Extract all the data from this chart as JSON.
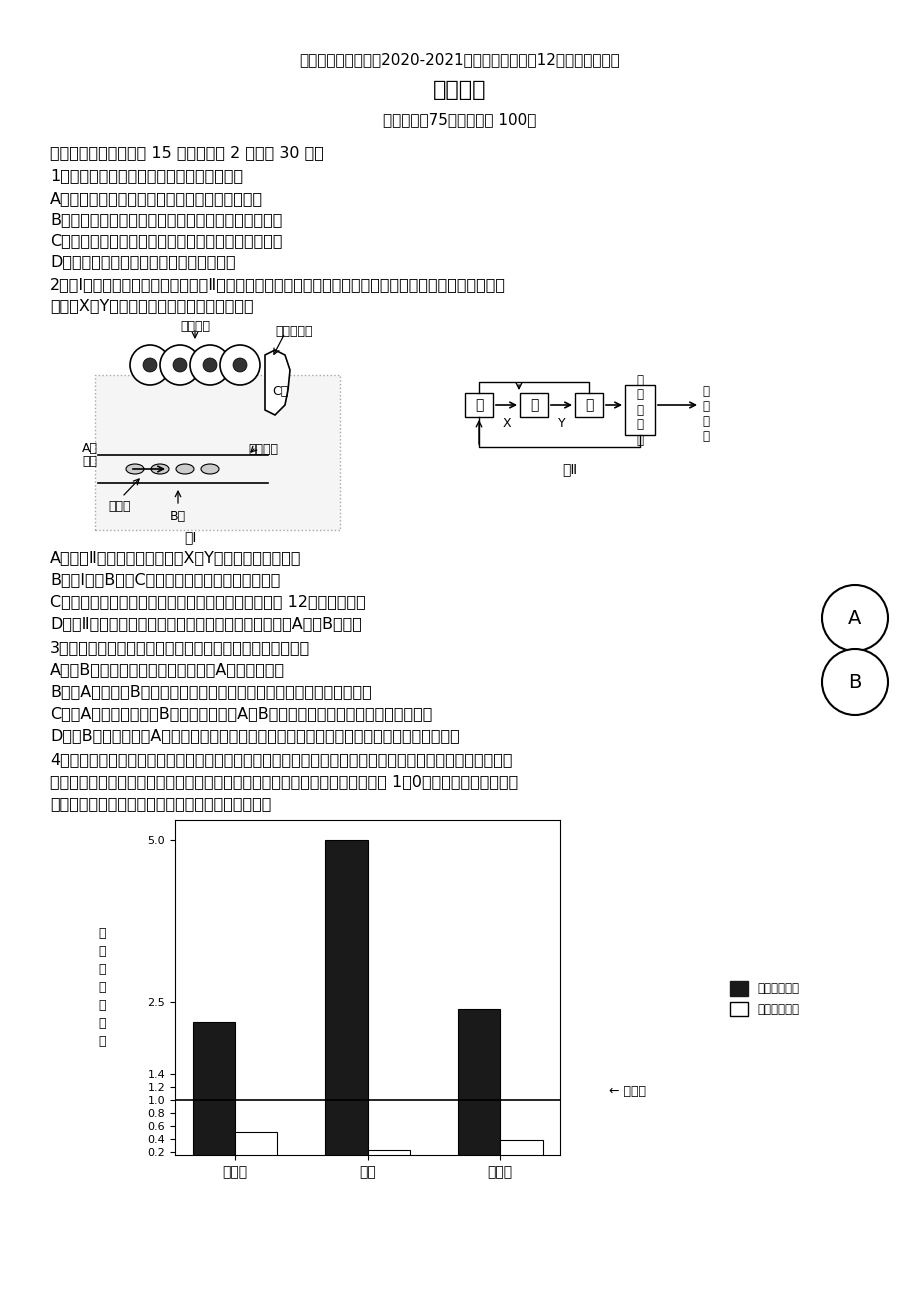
{
  "title_line1": "江苏省南菁高级中学2020-2021学年第一学期高二12月份阶段性考试",
  "title_line2": "生物试卷",
  "title_line3": "考试时间：75分钟，满分 100分",
  "section1": "一、单选题（本大题共 15 小题，每题 2 分，共 30 分）",
  "q1": "1．下列与人体内环境相关的叙述，正确的是",
  "q1a": "A．尿素、胆固醇、血浆蛋白均属于内环境的成分",
  "q1b": "B．内环境稳态是指内环境的理化性质处于动态平衡中",
  "q1c": "C．运动时，丙酮酸转化成乳酸的过程发生在组织液中",
  "q1d": "D．内环境是机体进行细胞代谢的主要场所",
  "q2_intro": "2．图Ⅰ是某组织局部结构模式图；图Ⅱ是人体甲状腺激素分泌的调节示意图，甲、乙、丙分别代表不同结构",
  "q2_intro2": "名称，X、Y代表激素名称。下列叙述错误的是",
  "q2a": "A．据图Ⅱ分析，人体缺碘时，X、Y的含量均低于正常值",
  "q2b": "B．图Ⅰ中，B液和C液中均存在淋巴细胞和吞噬细胞",
  "q2c": "C．红细胞中的氧气进入组织细胞被利用，需至少穿过 12层磷脂分子层",
  "q2d": "D．图Ⅱ中既存在分级调节也存在反馈调节，调节过程需A液、B液参与",
  "q3": "3．如图表示两个细胞相互接触的过程，下列叙述不正确的是",
  "q3a": "A．若B内部已经侵入了麻风杆菌，则A可能是浆细胞",
  "q3b": "B．若A是精子，B是卵细胞，则它们的结合与细胞膜上的糖蛋白识别有关",
  "q3c": "C．若A是死亡的细胞，B是吞噬细胞，则A被B吞噬后被分解的过程主要与溶酶体有关",
  "q3d": "D．若B是吞噬细胞，A是侵入人体的病原体细胞，则吞噬病原体的过程依赖于细胞膜的流动性",
  "q4_intro1": "4．胰岛素敏感性是描述胰岛素抵抗程度的一个指标。胰岛素敏感性越低，单位胰岛素的效果越差，分解糖类",
  "q4_intro2": "的程度就越低。如果将健康的成年人的胰岛素敏感性和胰岛素释放量的值均定为 1．0，那么健康的青少年、",
  "q4_intro3": "孕妇和肥胖者相应的值如图所示。下列分析正确的是",
  "bar_categories": [
    "青少年",
    "孕妇",
    "肥胖者"
  ],
  "bar_release": [
    2.2,
    5.0,
    2.4
  ],
  "bar_sensitivity": [
    0.5,
    0.22,
    0.38
  ],
  "bar_yticks": [
    0.2,
    0.4,
    0.6,
    0.8,
    1.0,
    1.2,
    1.4,
    2.5,
    5.0
  ],
  "bar_ylabel": "成\n年\n人\n值\n的\n倍\n数",
  "adult_label": "成年人",
  "legend_release": "胰岛素释放量",
  "legend_sensitivity": "胰岛素敏感性",
  "bg_color": "#ffffff",
  "text_color": "#000000",
  "bar_color_dark": "#1a1a1a",
  "bar_color_light": "#ffffff"
}
